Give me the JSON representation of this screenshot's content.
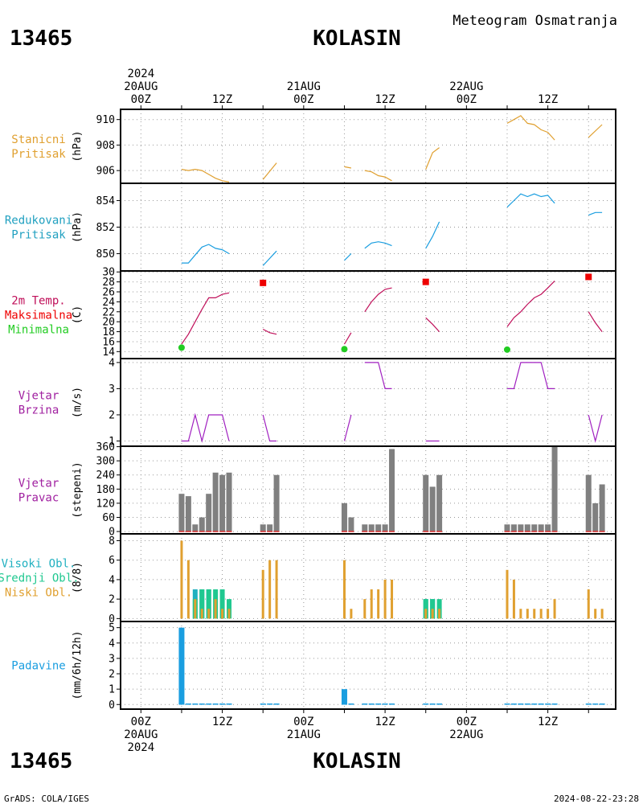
{
  "header": {
    "station_id": "13465",
    "station_name": "KOLASIN",
    "product": "Meteogram Osmatranja"
  },
  "footer": {
    "station_id": "13465",
    "station_name": "KOLASIN",
    "credit": "GrADS: COLA/IGES",
    "timestamp": "2024-08-22-23:28"
  },
  "time_axis": {
    "top_labels": [
      {
        "t": 0,
        "lines": [
          "2024",
          "20AUG",
          "00Z"
        ]
      },
      {
        "t": 12,
        "lines": [
          "12Z"
        ]
      },
      {
        "t": 24,
        "lines": [
          "21AUG",
          "00Z"
        ]
      },
      {
        "t": 36,
        "lines": [
          "12Z"
        ]
      },
      {
        "t": 48,
        "lines": [
          "22AUG",
          "00Z"
        ]
      },
      {
        "t": 60,
        "lines": [
          "12Z"
        ]
      }
    ],
    "bottom_labels": [
      {
        "t": 0,
        "lines": [
          "00Z",
          "20AUG",
          "2024"
        ]
      },
      {
        "t": 12,
        "lines": [
          "12Z"
        ]
      },
      {
        "t": 24,
        "lines": [
          "00Z",
          "21AUG"
        ]
      },
      {
        "t": 36,
        "lines": [
          "12Z"
        ]
      },
      {
        "t": 48,
        "lines": [
          "00Z",
          "22AUG"
        ]
      },
      {
        "t": 60,
        "lines": [
          "12Z"
        ]
      }
    ],
    "range_hours": [
      -3,
      70
    ]
  },
  "colors": {
    "pressure_station": "#e0a030",
    "pressure_reduced": "#1a9ee0",
    "temp_line": "#c0105a",
    "temp_max": "#ee0000",
    "temp_min": "#22cc22",
    "wind": "#a020c0",
    "wind_bar": "#808080",
    "wind_dir_text": "#a020a0",
    "cloud_high": "#20b0c0",
    "cloud_mid": "#20c890",
    "cloud_low": "#e0a030",
    "precip": "#1a9ee0",
    "label_pressure_station": "#e0a030",
    "label_pressure_reduced": "#20a0c0"
  },
  "chart_data": [
    {
      "id": "station_pressure",
      "type": "line",
      "label_lines": [
        "Stanicni",
        "Pritisak"
      ],
      "label_colors": [
        "#e0a030",
        "#e0a030"
      ],
      "unit": "(hPa)",
      "ylim": [
        905,
        910.8
      ],
      "yticks": [
        906,
        908,
        910
      ],
      "ytick_labels": [
        "906",
        "908",
        "910"
      ],
      "series": [
        {
          "x": [
            6,
            7,
            8,
            9,
            10,
            11,
            12,
            13
          ],
          "y": [
            906.1,
            906.0,
            906.1,
            906.0,
            905.7,
            905.4,
            905.2,
            905.1
          ]
        },
        {
          "x": [
            18,
            20
          ],
          "y": [
            905.3,
            906.6
          ]
        },
        {
          "x": [
            30,
            31
          ],
          "y": [
            906.3,
            906.2
          ]
        },
        {
          "x": [
            33,
            34,
            35,
            36,
            37
          ],
          "y": [
            906.0,
            905.9,
            905.6,
            905.5,
            905.2
          ]
        },
        {
          "x": [
            42,
            43,
            44
          ],
          "y": [
            906.1,
            907.4,
            907.8
          ]
        },
        {
          "x": [
            54,
            55,
            56,
            57,
            58,
            59,
            60,
            61
          ],
          "y": [
            909.7,
            910.0,
            910.3,
            909.7,
            909.6,
            909.2,
            909.0,
            908.4
          ]
        },
        {
          "x": [
            66,
            68
          ],
          "y": [
            908.6,
            909.6
          ]
        }
      ]
    },
    {
      "id": "reduced_pressure",
      "type": "line",
      "label_lines": [
        "Redukovani",
        "Pritisak"
      ],
      "label_colors": [
        "#20a0c0",
        "#20a0c0"
      ],
      "unit": "(hPa)",
      "ylim": [
        848.7,
        855.3
      ],
      "yticks": [
        850,
        852,
        854
      ],
      "ytick_labels": [
        "850",
        "852",
        "854"
      ],
      "series": [
        {
          "x": [
            6,
            7,
            8,
            9,
            10,
            11,
            12,
            13
          ],
          "y": [
            849.3,
            849.3,
            849.9,
            850.5,
            850.7,
            850.4,
            850.3,
            850.0
          ]
        },
        {
          "x": [
            18,
            20
          ],
          "y": [
            849.1,
            850.2
          ]
        },
        {
          "x": [
            30,
            31
          ],
          "y": [
            849.5,
            850.0
          ]
        },
        {
          "x": [
            33,
            34,
            35,
            36,
            37
          ],
          "y": [
            850.4,
            850.8,
            850.9,
            850.8,
            850.6
          ]
        },
        {
          "x": [
            42,
            43,
            44
          ],
          "y": [
            850.4,
            851.3,
            852.4
          ]
        },
        {
          "x": [
            54,
            55,
            56,
            57,
            58,
            59,
            60,
            61
          ],
          "y": [
            853.5,
            854.0,
            854.5,
            854.3,
            854.5,
            854.3,
            854.4,
            853.8
          ]
        },
        {
          "x": [
            66,
            67,
            68
          ],
          "y": [
            852.9,
            853.1,
            853.1
          ]
        }
      ]
    },
    {
      "id": "temperature",
      "type": "line",
      "label_lines": [
        "2m Temp.",
        "Maksimalna",
        "Minimalna"
      ],
      "label_colors": [
        "#c0105a",
        "#ee0000",
        "#22cc22"
      ],
      "unit": "(C)",
      "ylim": [
        12.6,
        30.2
      ],
      "yticks": [
        14,
        16,
        18,
        20,
        22,
        24,
        26,
        28,
        30
      ],
      "ytick_labels": [
        "14",
        "16",
        "18",
        "20",
        "22",
        "24",
        "26",
        "28",
        "30"
      ],
      "series": [
        {
          "x": [
            6,
            7,
            8,
            9,
            10,
            11,
            12,
            13
          ],
          "y": [
            15.5,
            17.5,
            20.0,
            22.5,
            24.8,
            24.8,
            25.5,
            25.8
          ]
        },
        {
          "x": [
            18,
            19,
            20
          ],
          "y": [
            18.5,
            17.8,
            17.5
          ]
        },
        {
          "x": [
            30,
            31
          ],
          "y": [
            15.5,
            17.8
          ]
        },
        {
          "x": [
            33,
            34,
            35,
            36,
            37
          ],
          "y": [
            22.0,
            24.0,
            25.5,
            26.5,
            26.8
          ]
        },
        {
          "x": [
            42,
            43,
            44
          ],
          "y": [
            20.8,
            19.5,
            18.0
          ]
        },
        {
          "x": [
            54,
            55,
            56,
            57,
            58,
            59,
            60,
            61
          ],
          "y": [
            19.0,
            20.8,
            22.0,
            23.5,
            24.8,
            25.5,
            26.8,
            28.2
          ]
        },
        {
          "x": [
            66,
            67,
            68
          ],
          "y": [
            22.0,
            19.8,
            18.0
          ]
        }
      ],
      "max_points": {
        "x": [
          18,
          42,
          66
        ],
        "y": [
          27.8,
          28.0,
          29.0
        ]
      },
      "min_points": {
        "x": [
          6,
          30,
          54
        ],
        "y": [
          14.8,
          14.5,
          14.4
        ]
      }
    },
    {
      "id": "wind_speed",
      "type": "line",
      "label_lines": [
        "Vjetar",
        "Brzina"
      ],
      "label_colors": [
        "#a020a0",
        "#a020a0"
      ],
      "unit": "(m/s)",
      "ylim": [
        0.8,
        4.15
      ],
      "yticks": [
        1,
        2,
        3,
        4
      ],
      "ytick_labels": [
        "1",
        "2",
        "3",
        "4"
      ],
      "series": [
        {
          "x": [
            6,
            7,
            8,
            9,
            10,
            11,
            12,
            13
          ],
          "y": [
            1,
            1,
            2,
            1,
            2,
            2,
            2,
            1
          ]
        },
        {
          "x": [
            18,
            19,
            20
          ],
          "y": [
            2,
            1,
            1
          ]
        },
        {
          "x": [
            30,
            31
          ],
          "y": [
            1,
            2
          ]
        },
        {
          "x": [
            33,
            34,
            35,
            36,
            37
          ],
          "y": [
            4,
            4,
            4,
            3,
            3
          ]
        },
        {
          "x": [
            42,
            43,
            44
          ],
          "y": [
            1,
            1,
            1
          ]
        },
        {
          "x": [
            54,
            55,
            56,
            57,
            58,
            59,
            60,
            61
          ],
          "y": [
            3,
            3,
            4,
            4,
            4,
            4,
            3,
            3
          ]
        },
        {
          "x": [
            66,
            67,
            68
          ],
          "y": [
            2,
            1,
            2
          ]
        }
      ]
    },
    {
      "id": "wind_direction",
      "type": "bar",
      "label_lines": [
        "Vjetar",
        "Pravac"
      ],
      "label_colors": [
        "#a020a0",
        "#a020a0"
      ],
      "unit": "(stepeni)",
      "ylim": [
        -10,
        362
      ],
      "yticks": [
        0,
        60,
        120,
        180,
        240,
        300,
        360
      ],
      "ytick_labels": [
        "0",
        "60",
        "120",
        "180",
        "240",
        "300",
        "360"
      ],
      "x": [
        6,
        7,
        8,
        9,
        10,
        11,
        12,
        13,
        18,
        19,
        20,
        30,
        31,
        33,
        34,
        35,
        36,
        37,
        42,
        43,
        44,
        54,
        55,
        56,
        57,
        58,
        59,
        60,
        61,
        66,
        67,
        68
      ],
      "values": [
        160,
        150,
        30,
        60,
        160,
        250,
        240,
        250,
        30,
        30,
        240,
        120,
        60,
        30,
        30,
        30,
        30,
        350,
        240,
        190,
        240,
        30,
        30,
        30,
        30,
        30,
        30,
        30,
        360,
        240,
        120,
        200
      ]
    },
    {
      "id": "clouds",
      "type": "bar",
      "label_lines": [
        "Visoki Obl.",
        "Srednji Obl.",
        "Niski Obl."
      ],
      "label_colors": [
        "#20b0c0",
        "#20c890",
        "#e0a030"
      ],
      "unit": "(8/8)",
      "ylim": [
        -0.3,
        8.7
      ],
      "yticks": [
        0,
        2,
        4,
        6,
        8
      ],
      "ytick_labels": [
        "0",
        "2",
        "4",
        "6",
        "8"
      ],
      "series": [
        {
          "name": "Visoki Obl.",
          "x": [
            8,
            9,
            10,
            42,
            43
          ],
          "values": [
            3,
            3,
            3,
            2,
            2
          ]
        },
        {
          "name": "Srednji Obl.",
          "x": [
            8,
            9,
            10,
            11,
            12,
            13,
            42,
            43,
            44
          ],
          "values": [
            2,
            3,
            3,
            3,
            3,
            2,
            2,
            2,
            2
          ]
        },
        {
          "name": "Niski Obl.",
          "x": [
            6,
            7,
            8,
            9,
            10,
            11,
            12,
            13,
            18,
            19,
            20,
            30,
            31,
            33,
            34,
            35,
            36,
            37,
            42,
            43,
            44,
            54,
            55,
            56,
            57,
            58,
            59,
            60,
            61,
            66,
            67,
            68
          ],
          "values": [
            8,
            6,
            2,
            1,
            1,
            2,
            1,
            1,
            5,
            6,
            6,
            6,
            1,
            2,
            3,
            3,
            4,
            4,
            1,
            1,
            1,
            5,
            4,
            1,
            1,
            1,
            1,
            1,
            2,
            3,
            1,
            1
          ]
        }
      ]
    },
    {
      "id": "precipitation",
      "type": "bar",
      "label_lines": [
        "Padavine"
      ],
      "label_colors": [
        "#1a9ee0"
      ],
      "unit": "(mm/6h/12h)",
      "ylim": [
        -0.3,
        5.4
      ],
      "yticks": [
        0,
        1,
        2,
        3,
        4,
        5
      ],
      "ytick_labels": [
        "0",
        "1",
        "2",
        "3",
        "4",
        "5"
      ],
      "x": [
        6,
        30
      ],
      "values": [
        5,
        1
      ],
      "trace_x": [
        6,
        7,
        8,
        9,
        10,
        11,
        12,
        13,
        18,
        19,
        20,
        30,
        31,
        33,
        34,
        35,
        36,
        37,
        42,
        43,
        44,
        54,
        55,
        56,
        57,
        58,
        59,
        60,
        61,
        66,
        67,
        68
      ]
    }
  ]
}
